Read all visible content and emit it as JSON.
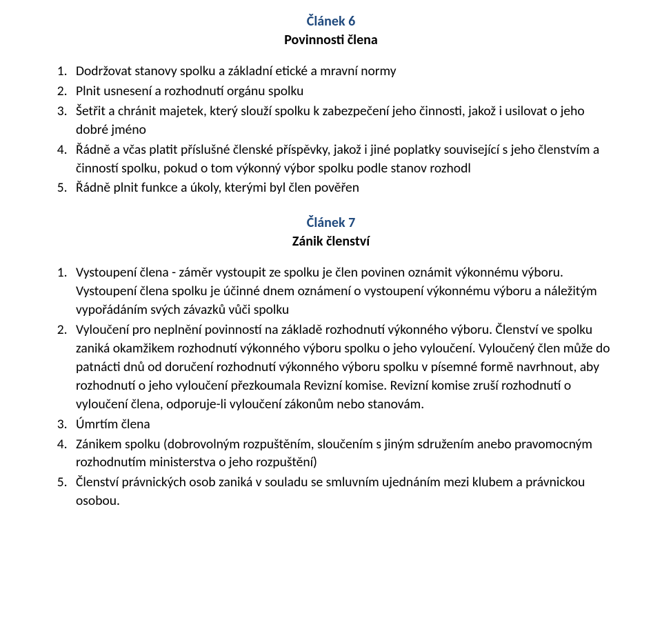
{
  "colors": {
    "heading": "#1f497d",
    "text": "#000000",
    "background": "#ffffff"
  },
  "typography": {
    "font_family": "Calibri",
    "body_size_pt": 14,
    "heading_size_pt": 14,
    "heading_weight": 700
  },
  "article6": {
    "heading": "Článek 6",
    "subheading": "Povinnosti člena",
    "items": [
      "Dodržovat stanovy spolku a základní etické a mravní normy",
      "Plnit usnesení a rozhodnutí orgánu spolku",
      "Šetřit a chránit majetek, který slouží spolku k zabezpečení jeho činnosti, jakož i usilovat o jeho dobré jméno",
      "Řádně a včas platit příslušné členské příspěvky, jakož i jiné poplatky související s jeho členstvím a činností spolku, pokud o tom výkonný výbor spolku podle stanov rozhodl",
      "Řádně plnit funkce a úkoly, kterými byl člen pověřen"
    ]
  },
  "article7": {
    "heading": "Článek 7",
    "subheading": "Zánik členství",
    "items": [
      "Vystoupení člena  - záměr vystoupit ze spolku je člen povinen oznámit výkonnému výboru. Vystoupení člena spolku je účinné dnem oznámení o vystoupení výkonnému výboru a náležitým vypořádáním svých závazků vůči spolku",
      "Vyloučení pro neplnění povinností na základě rozhodnutí výkonného výboru. Členství ve spolku zaniká okamžikem rozhodnutí výkonného výboru spolku o jeho vyloučení. Vyloučený člen může do patnácti dnů od doručení rozhodnutí výkonného výboru spolku v písemné formě navrhnout, aby rozhodnutí o jeho vyloučení přezkoumala Revizní komise. Revizní komise zruší rozhodnutí o vyloučení člena, odporuje-li vyloučení zákonům nebo stanovám.",
      "Úmrtím člena",
      "Zánikem spolku (dobrovolným rozpuštěním, sloučením s jiným sdružením anebo pravomocným rozhodnutím ministerstva o jeho rozpuštění)",
      "Členství právnických osob zaniká v souladu se smluvním ujednáním mezi klubem a právnickou osobou."
    ]
  }
}
